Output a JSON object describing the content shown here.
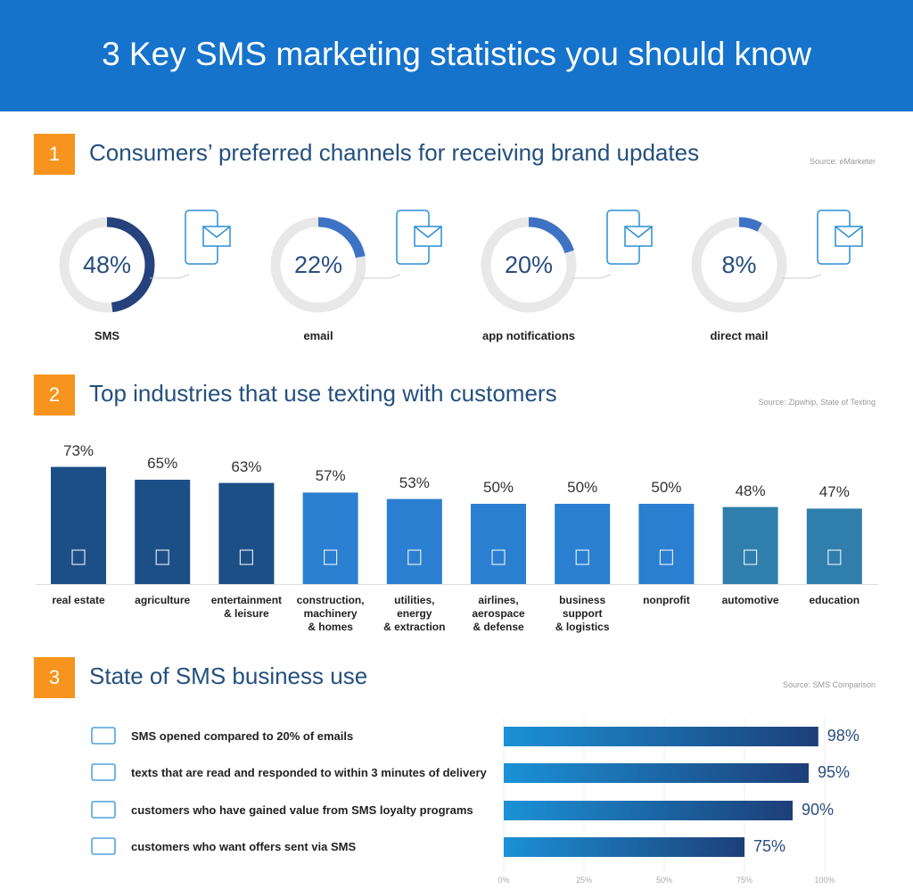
{
  "title": "3 Key SMS marketing statistics you should know",
  "chart_data": [
    {
      "type": "donut",
      "number": "1",
      "title": "Consumers’ preferred channels for receiving brand updates",
      "source": "Source: eMarketer",
      "categories": [
        "SMS",
        "email",
        "app notifications",
        "direct mail"
      ],
      "values": [
        48,
        22,
        20,
        8
      ],
      "value_labels": [
        "48%",
        "22%",
        "20%",
        "8%"
      ],
      "colors": [
        "#26427c",
        "#3e72c4",
        "#3e72c4",
        "#3e72c4"
      ],
      "track_color": "#e8e8e8"
    },
    {
      "type": "bar",
      "number": "2",
      "title": "Top industries that use texting with customers",
      "source": "Source: Zipwhip, State of Texting",
      "categories": [
        "real estate",
        "agriculture",
        "entertainment\n& leisure",
        "construction,\nmachinery\n& homes",
        "utilities,\nenergy\n& extraction",
        "airlines,\naerospace\n& defense",
        "business\nsupport\n& logistics",
        "nonprofit",
        "automotive",
        "education"
      ],
      "values": [
        73,
        65,
        63,
        57,
        53,
        50,
        50,
        50,
        48,
        47
      ],
      "value_labels": [
        "73%",
        "65%",
        "63%",
        "57%",
        "53%",
        "50%",
        "50%",
        "50%",
        "48%",
        "47%"
      ],
      "colors": [
        "#1c4f86",
        "#1c4f86",
        "#1c4f86",
        "#2a7fd0",
        "#2a7fd0",
        "#2a7fd0",
        "#2a7fd0",
        "#2a7fd0",
        "#2f7eab",
        "#2f7eab"
      ]
    },
    {
      "type": "hbar",
      "number": "3",
      "title": "State of SMS business use",
      "source": "Source: SMS Comparison",
      "categories": [
        "SMS opened compared to 20% of emails",
        "texts that are read and responded to within 3 minutes of delivery",
        "customers who have gained value from SMS loyalty programs",
        "customers who want offers sent via SMS"
      ],
      "values": [
        98,
        95,
        90,
        75
      ],
      "value_labels": [
        "98%",
        "95%",
        "90%",
        "75%"
      ],
      "color_start": "#1b91d6",
      "color_end": "#1d3f78",
      "xlim": [
        0,
        100
      ],
      "xticks": [
        {
          "value": 0,
          "label": "0%"
        },
        {
          "value": 25,
          "label": "25%"
        },
        {
          "value": 50,
          "label": "50%"
        },
        {
          "value": 75,
          "label": "75%"
        },
        {
          "value": 100,
          "label": "100%"
        }
      ]
    }
  ]
}
